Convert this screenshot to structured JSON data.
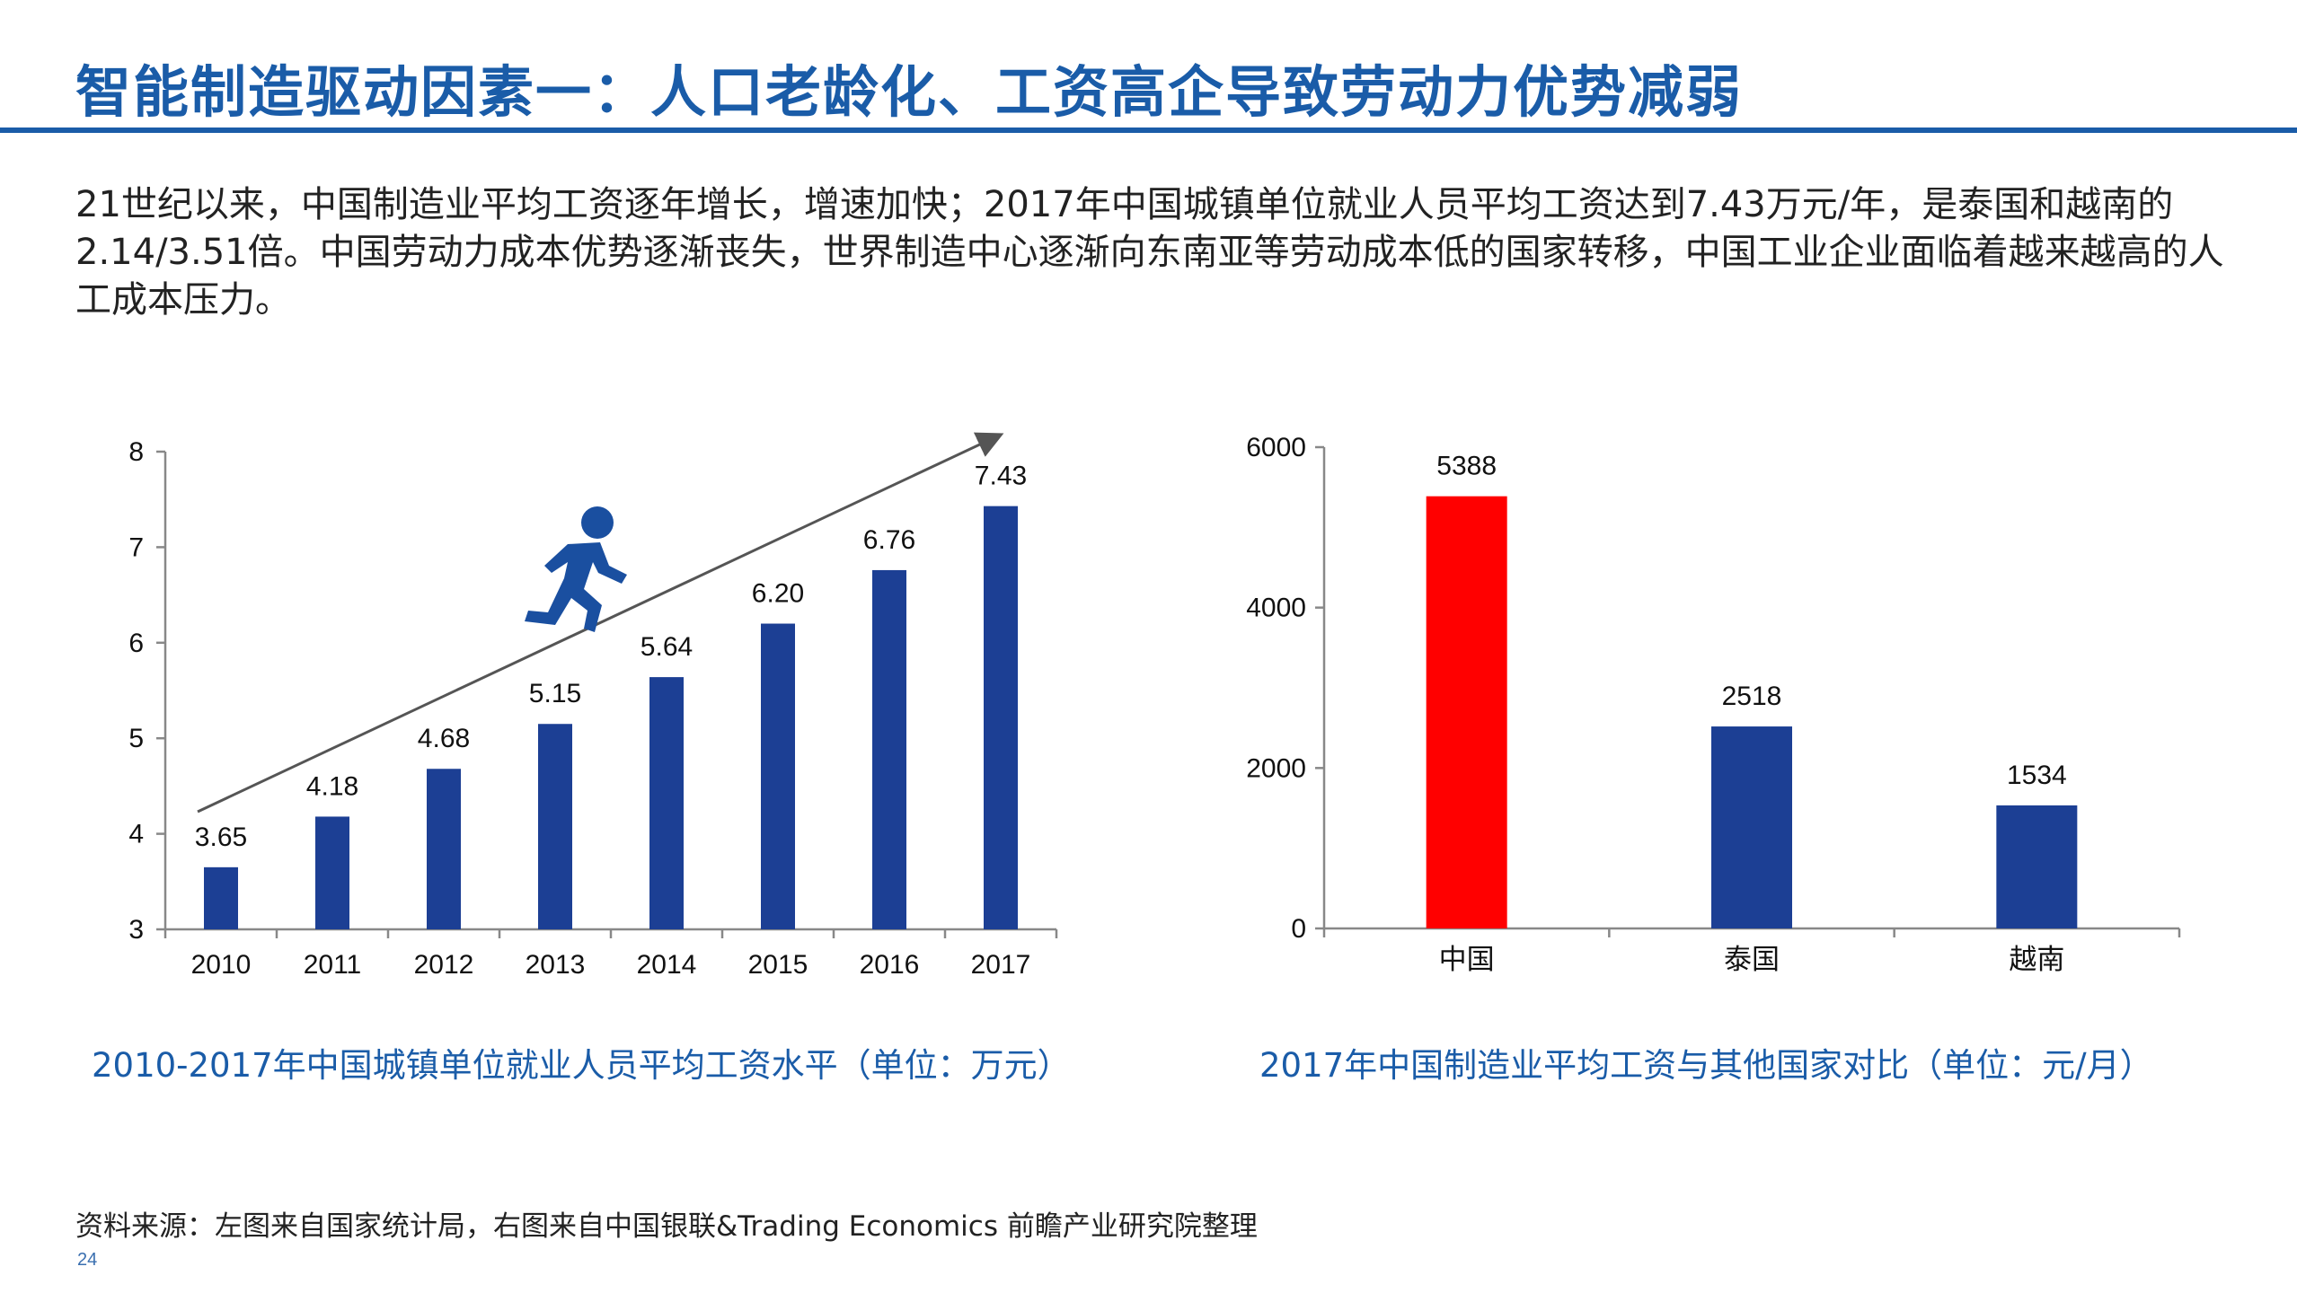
{
  "slide": {
    "title": "智能制造驱动因素一：人口老龄化、工资高企导致劳动力优势减弱",
    "intro_text": "21世纪以来，中国制造业平均工资逐年增长，增速加快；2017年中国城镇单位就业人员平均工资达到7.43万元/年，是泰国和越南的2.14/3.51倍。中国劳动力成本优势逐渐丧失，世界制造中心逐渐向东南亚等劳动成本低的国家转移，中国工业企业面临着越来越高的人工成本压力。",
    "source": "资料来源：左图来自国家统计局，右图来自中国银联&Trading Economics 前瞻产业研究院整理",
    "page_number": "24"
  },
  "colors": {
    "brand_blue": "#1a5ca8",
    "bar_blue": "#1c3f94",
    "highlight_red": "#ff0000"
  },
  "icons": {
    "runner": "running-person-icon"
  },
  "chart_data": [
    {
      "type": "bar",
      "caption": "2010-2017年中国城镇单位就业人员平均工资水平（单位：万元）",
      "categories": [
        "2010",
        "2011",
        "2012",
        "2013",
        "2014",
        "2015",
        "2016",
        "2017"
      ],
      "values": [
        3.65,
        4.18,
        4.68,
        5.15,
        5.64,
        6.2,
        6.76,
        7.43
      ],
      "data_labels": [
        "3.65",
        "4.18",
        "4.68",
        "5.15",
        "5.64",
        "6.20",
        "6.76",
        "7.43"
      ],
      "ylim": [
        3,
        8
      ],
      "yticks": [
        "3",
        "4",
        "5",
        "6",
        "7",
        "8"
      ],
      "grid": false,
      "color": "#1c3f94",
      "annotation": "upward trend arrow with running-person icon"
    },
    {
      "type": "bar",
      "caption": "2017年中国制造业平均工资与其他国家对比（单位：元/月）",
      "categories": [
        "中国",
        "泰国",
        "越南"
      ],
      "values": [
        5388,
        2518,
        1534
      ],
      "data_labels": [
        "5388",
        "2518",
        "1534"
      ],
      "ylim": [
        0,
        6000
      ],
      "yticks": [
        "0",
        "2000",
        "4000",
        "6000"
      ],
      "grid": false,
      "colors": [
        "#ff0000",
        "#1c3f94",
        "#1c3f94"
      ]
    }
  ]
}
